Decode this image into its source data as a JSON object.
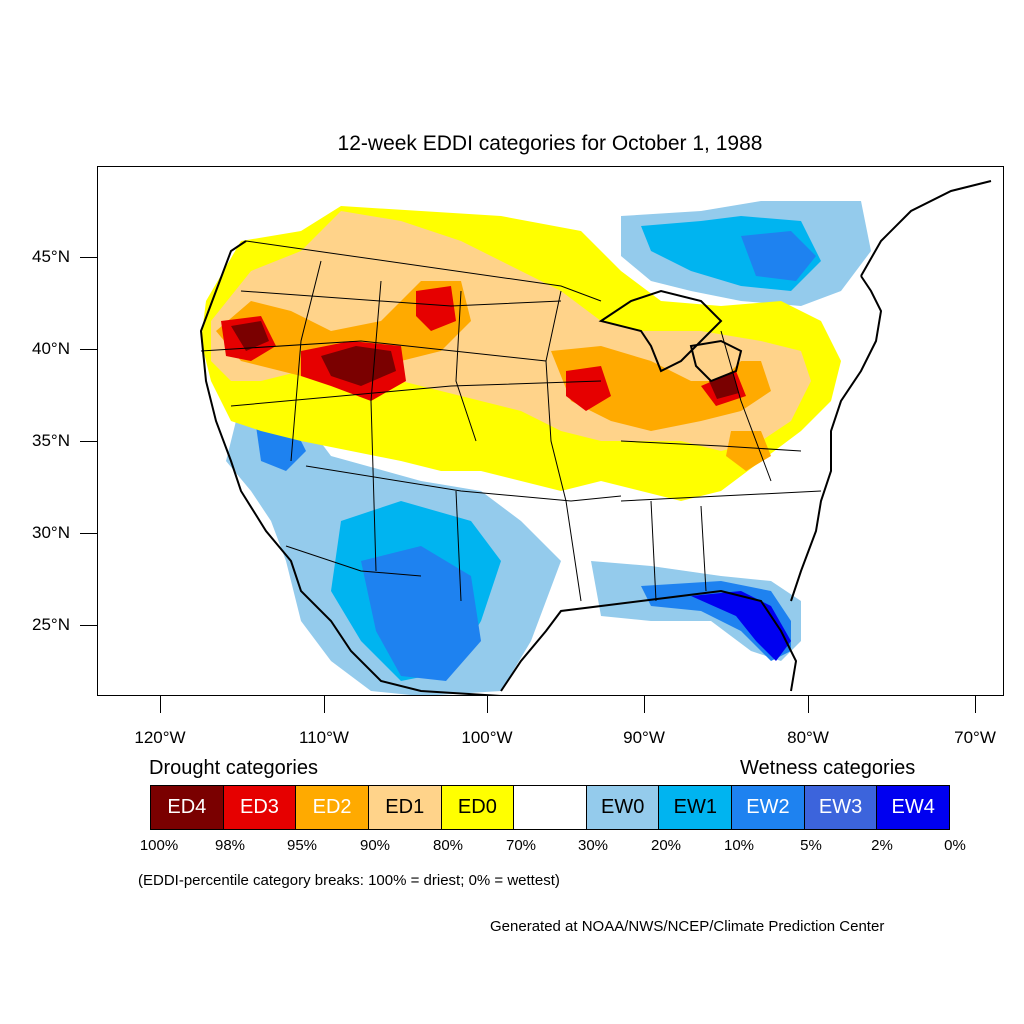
{
  "title": "12-week EDDI categories for October 1, 1988",
  "axes": {
    "lat_labels": [
      "45°N",
      "40°N",
      "35°N",
      "30°N",
      "25°N"
    ],
    "lon_labels": [
      "120°W",
      "110°W",
      "100°W",
      "90°W",
      "80°W",
      "70°W"
    ]
  },
  "legend": {
    "drought_heading": "Drought categories",
    "wetness_heading": "Wetness categories",
    "categories": [
      {
        "label": "ED4",
        "color": "#7a0000",
        "text_color": "#ffffff"
      },
      {
        "label": "ED3",
        "color": "#e60000",
        "text_color": "#ffffff"
      },
      {
        "label": "ED2",
        "color": "#ffaa00",
        "text_color": "#ffffff"
      },
      {
        "label": "ED1",
        "color": "#ffd38a",
        "text_color": "#000000"
      },
      {
        "label": "ED0",
        "color": "#ffff00",
        "text_color": "#000000"
      },
      {
        "label": "",
        "color": "#ffffff",
        "text_color": "#000000"
      },
      {
        "label": "EW0",
        "color": "#94cbec",
        "text_color": "#000000"
      },
      {
        "label": "EW1",
        "color": "#00b4f0",
        "text_color": "#000000"
      },
      {
        "label": "EW2",
        "color": "#1e82f0",
        "text_color": "#ffffff"
      },
      {
        "label": "EW3",
        "color": "#3c64dc",
        "text_color": "#ffffff"
      },
      {
        "label": "EW4",
        "color": "#0000f0",
        "text_color": "#ffffff"
      }
    ],
    "breaks": [
      "100%",
      "98%",
      "95%",
      "90%",
      "80%",
      "70%",
      "30%",
      "20%",
      "10%",
      "5%",
      "2%",
      "0%"
    ]
  },
  "note": "(EDDI-percentile category breaks: 100% = driest; 0% = wettest)",
  "credit": "Generated at NOAA/NWS/NCEP/Climate Prediction Center"
}
